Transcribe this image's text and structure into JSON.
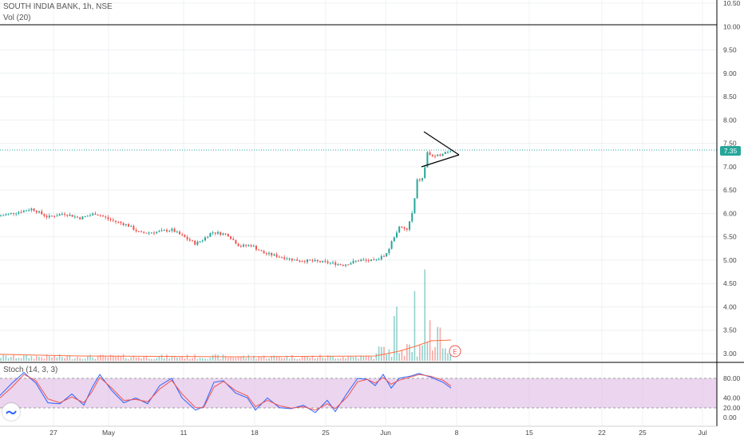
{
  "header": {
    "title": "SOUTH INDIA BANK, 1h, NSE",
    "volume_label": "Vol (20)"
  },
  "stoch": {
    "label": "Stoch (14, 3, 3)"
  },
  "price_axis": [
    "10.50",
    "10.00",
    "9.50",
    "9.00",
    "8.50",
    "8.00",
    "7.50",
    "7.00",
    "6.50",
    "6.00",
    "5.50",
    "5.00",
    "4.50",
    "4.00",
    "3.50",
    "3.00"
  ],
  "stoch_axis": [
    "80.00",
    "40.00",
    "20.00",
    "0.00"
  ],
  "time_axis": [
    "27",
    "May",
    "11",
    "18",
    "25",
    "Jun",
    "8",
    "15",
    "22",
    "25",
    "Jul"
  ],
  "last_price": "7.35",
  "earnings_marker": "E",
  "colors": {
    "up": "#26a69a",
    "down": "#ef5350",
    "stoch_k": "#2962ff",
    "stoch_d": "#ef5350",
    "band": "#e1bee7",
    "ma": "#ff7043"
  },
  "chart_data": [
    {
      "type": "candlestick",
      "title": "SOUTH INDIA BANK, 1h, NSE",
      "y_range": [
        2.9,
        10.55
      ],
      "last_price": 7.35,
      "close_path": [
        [
          0,
          5.95
        ],
        [
          20,
          6.02
        ],
        [
          40,
          6.1
        ],
        [
          60,
          5.92
        ],
        [
          80,
          6.0
        ],
        [
          100,
          5.9
        ],
        [
          120,
          6.0
        ],
        [
          140,
          5.85
        ],
        [
          160,
          5.75
        ],
        [
          175,
          5.58
        ],
        [
          195,
          5.6
        ],
        [
          215,
          5.65
        ],
        [
          230,
          5.5
        ],
        [
          245,
          5.35
        ],
        [
          255,
          5.45
        ],
        [
          265,
          5.6
        ],
        [
          285,
          5.55
        ],
        [
          300,
          5.3
        ],
        [
          315,
          5.32
        ],
        [
          330,
          5.15
        ],
        [
          350,
          5.08
        ],
        [
          370,
          5.0
        ],
        [
          390,
          4.98
        ],
        [
          410,
          4.95
        ],
        [
          430,
          4.9
        ],
        [
          450,
          5.0
        ],
        [
          470,
          4.98
        ],
        [
          485,
          5.15
        ],
        [
          492,
          5.45
        ],
        [
          500,
          5.7
        ],
        [
          510,
          5.65
        ],
        [
          518,
          6.1
        ],
        [
          522,
          6.7
        ],
        [
          530,
          6.75
        ],
        [
          535,
          7.3
        ],
        [
          545,
          7.2
        ],
        [
          555,
          7.3
        ],
        [
          565,
          7.35
        ]
      ],
      "triangle_pattern": {
        "upper": [
          [
            531,
            7.75
          ],
          [
            575,
            7.25
          ]
        ],
        "lower": [
          [
            528,
            7.0
          ],
          [
            575,
            7.25
          ]
        ]
      },
      "volume_spikes": [
        [
          495,
          0.4
        ],
        [
          520,
          0.58
        ],
        [
          533,
          0.78
        ],
        [
          538,
          0.33
        ],
        [
          550,
          0.2
        ]
      ]
    },
    {
      "type": "line",
      "title": "Stoch (14, 3, 3)",
      "y_range": [
        0,
        100
      ],
      "band": [
        20,
        80
      ],
      "series": [
        {
          "name": "%K",
          "values": [
            [
              0,
              45
            ],
            [
              15,
              70
            ],
            [
              30,
              92
            ],
            [
              45,
              70
            ],
            [
              60,
              30
            ],
            [
              75,
              28
            ],
            [
              90,
              48
            ],
            [
              105,
              25
            ],
            [
              115,
              60
            ],
            [
              125,
              88
            ],
            [
              140,
              55
            ],
            [
              155,
              30
            ],
            [
              170,
              40
            ],
            [
              185,
              28
            ],
            [
              200,
              65
            ],
            [
              215,
              80
            ],
            [
              228,
              40
            ],
            [
              245,
              15
            ],
            [
              255,
              22
            ],
            [
              268,
              72
            ],
            [
              280,
              75
            ],
            [
              295,
              50
            ],
            [
              310,
              40
            ],
            [
              320,
              15
            ],
            [
              335,
              40
            ],
            [
              350,
              20
            ],
            [
              365,
              18
            ],
            [
              380,
              25
            ],
            [
              395,
              10
            ],
            [
              410,
              35
            ],
            [
              420,
              12
            ],
            [
              435,
              50
            ],
            [
              448,
              80
            ],
            [
              460,
              78
            ],
            [
              470,
              65
            ],
            [
              480,
              88
            ],
            [
              490,
              60
            ],
            [
              500,
              80
            ],
            [
              515,
              85
            ],
            [
              525,
              90
            ],
            [
              540,
              82
            ],
            [
              555,
              72
            ],
            [
              565,
              60
            ]
          ]
        },
        {
          "name": "%D",
          "values": [
            [
              0,
              40
            ],
            [
              15,
              62
            ],
            [
              30,
              88
            ],
            [
              45,
              75
            ],
            [
              60,
              38
            ],
            [
              75,
              30
            ],
            [
              90,
              42
            ],
            [
              105,
              30
            ],
            [
              115,
              52
            ],
            [
              125,
              82
            ],
            [
              140,
              60
            ],
            [
              155,
              35
            ],
            [
              170,
              37
            ],
            [
              185,
              32
            ],
            [
              200,
              58
            ],
            [
              215,
              76
            ],
            [
              228,
              48
            ],
            [
              245,
              20
            ],
            [
              255,
              20
            ],
            [
              268,
              62
            ],
            [
              280,
              74
            ],
            [
              295,
              55
            ],
            [
              310,
              44
            ],
            [
              320,
              22
            ],
            [
              335,
              35
            ],
            [
              350,
              24
            ],
            [
              365,
              19
            ],
            [
              380,
              22
            ],
            [
              395,
              15
            ],
            [
              410,
              28
            ],
            [
              420,
              18
            ],
            [
              435,
              42
            ],
            [
              448,
              73
            ],
            [
              460,
              78
            ],
            [
              470,
              70
            ],
            [
              480,
              82
            ],
            [
              490,
              68
            ],
            [
              500,
              76
            ],
            [
              515,
              83
            ],
            [
              525,
              88
            ],
            [
              540,
              84
            ],
            [
              555,
              76
            ],
            [
              565,
              64
            ]
          ]
        }
      ]
    }
  ]
}
